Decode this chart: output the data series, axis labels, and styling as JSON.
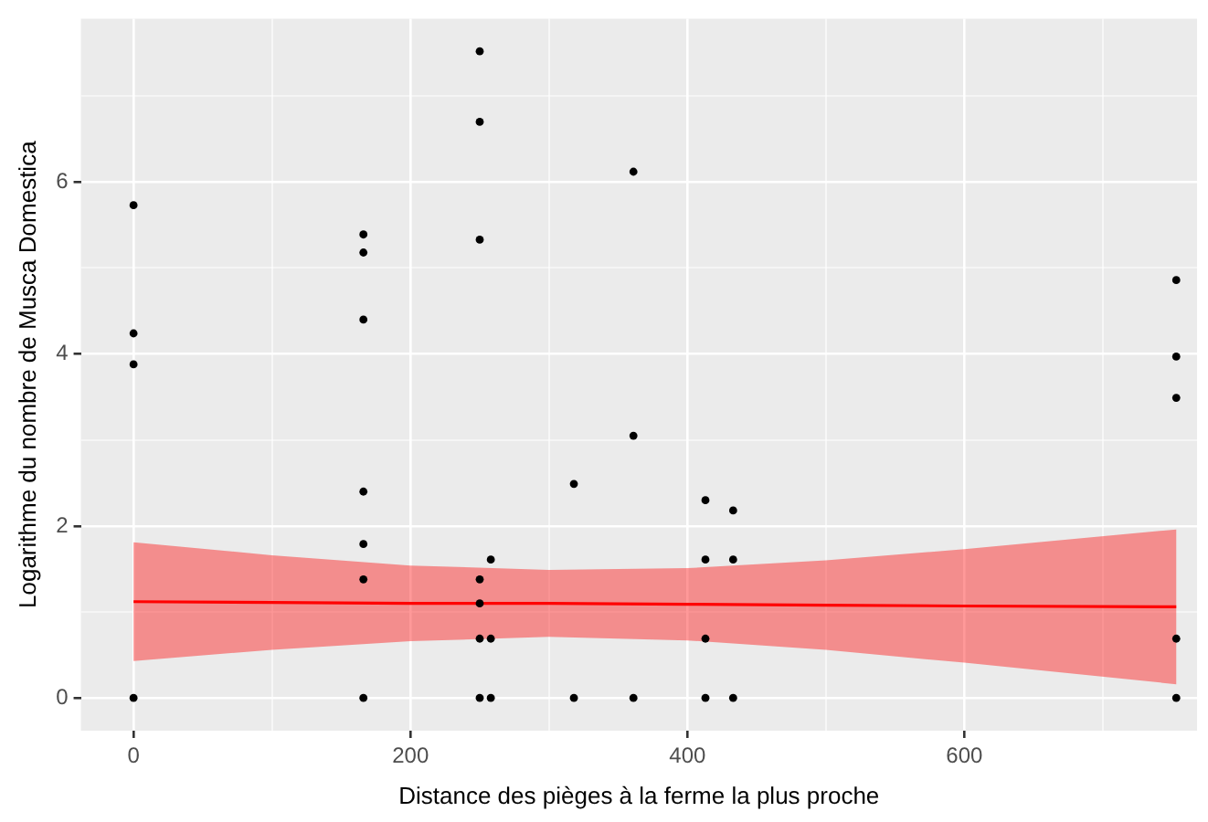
{
  "chart_data": {
    "type": "scatter",
    "xlabel": "Distance des pièges à la ferme la plus proche",
    "ylabel": "Logarithme du nombre de Musca Domestica",
    "xlim": [
      -38,
      768
    ],
    "ylim": [
      -0.38,
      7.9
    ],
    "xticks": [
      0,
      {
        "value": 100,
        "label": null
      },
      200,
      {
        "value": 300,
        "label": null
      },
      400,
      {
        "value": 500,
        "label": null
      },
      600,
      {
        "value": 700,
        "label": null
      }
    ],
    "yticks": [
      0,
      {
        "value": 1,
        "label": null
      },
      2,
      {
        "value": 3,
        "label": null
      },
      4,
      {
        "value": 5,
        "label": null
      },
      6,
      {
        "value": 7,
        "label": null
      }
    ],
    "grid": true,
    "legend": false,
    "marker": "circle",
    "series": [
      {
        "type": "scatter",
        "color": "#000000",
        "x": [
          0,
          0,
          0,
          0,
          166,
          166,
          166,
          166,
          166,
          166,
          166,
          250,
          250,
          250,
          250,
          250,
          250,
          250,
          258,
          258,
          258,
          318,
          318,
          361,
          361,
          361,
          413,
          413,
          413,
          413,
          433,
          433,
          433,
          753,
          753,
          753,
          753,
          753
        ],
        "values": [
          5.73,
          4.24,
          3.88,
          0,
          5.39,
          5.18,
          4.4,
          2.4,
          1.79,
          1.38,
          0,
          7.52,
          6.7,
          5.33,
          1.38,
          1.1,
          0.69,
          0,
          1.61,
          0.69,
          0,
          2.49,
          0,
          6.12,
          3.05,
          0,
          2.3,
          1.61,
          0.69,
          0,
          2.18,
          1.61,
          0,
          4.86,
          3.97,
          3.49,
          0.69,
          0
        ]
      },
      {
        "type": "line",
        "color": "#ff0000",
        "marker": "none",
        "x": [
          0,
          100,
          200,
          300,
          400,
          500,
          600,
          753
        ],
        "values": [
          1.12,
          1.11,
          1.1,
          1.1,
          1.09,
          1.08,
          1.07,
          1.06
        ],
        "lower": [
          0.43,
          0.56,
          0.66,
          0.71,
          0.67,
          0.56,
          0.41,
          0.16
        ],
        "upper": [
          1.81,
          1.66,
          1.54,
          1.49,
          1.51,
          1.6,
          1.73,
          1.96
        ]
      }
    ]
  }
}
